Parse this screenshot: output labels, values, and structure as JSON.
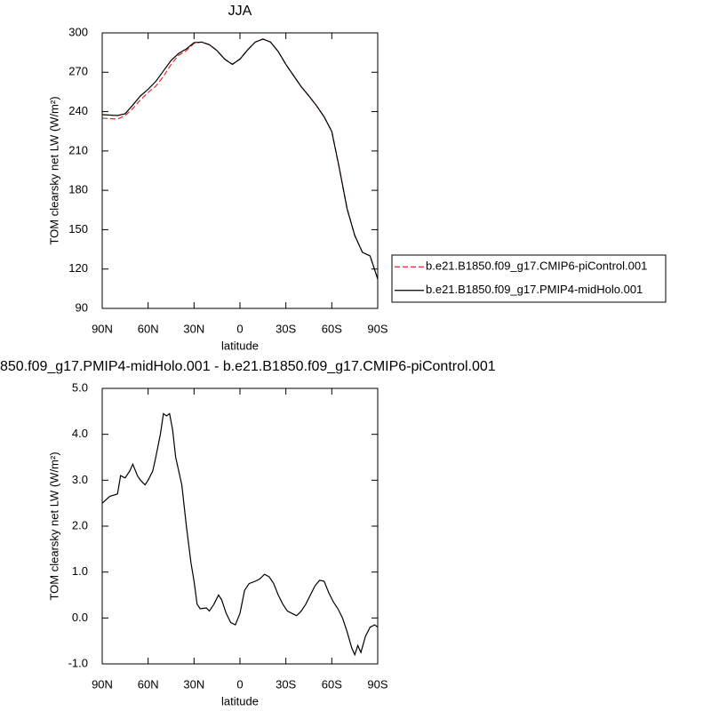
{
  "chart_data": [
    {
      "type": "line",
      "title": "JJA",
      "xlabel": "latitude",
      "ylabel": "TOM clearsky net LW (W/m²)",
      "x": [
        90,
        80,
        75,
        70,
        65,
        60,
        55,
        50,
        45,
        40,
        35,
        30,
        25,
        20,
        15,
        10,
        5,
        0,
        -5,
        -10,
        -15,
        -20,
        -25,
        -30,
        -35,
        -40,
        -45,
        -50,
        -55,
        -60,
        -65,
        -70,
        -75,
        -80,
        -85,
        -90
      ],
      "series": [
        {
          "name": "b.e21.B1850.f09_g17.CMIP6-piControl.001",
          "color": "#e8262a",
          "line_style": "dashed",
          "values": [
            235,
            234.3,
            237,
            242.4,
            249,
            254.6,
            259.4,
            266.8,
            276,
            283,
            286.5,
            292,
            293,
            291,
            286.5,
            280,
            276,
            280,
            287,
            293,
            295.3,
            293,
            285.8,
            276,
            267.5,
            259,
            252,
            244.5,
            236,
            224.8,
            196.4,
            165.9,
            145.6,
            132.7,
            130,
            112.4
          ]
        },
        {
          "name": "b.e21.B1850.f09_g17.PMIP4-midHolo.001",
          "color": "#000000",
          "line_style": "solid",
          "values": [
            237.7,
            237,
            238.4,
            245,
            252,
            257,
            263,
            271,
            279,
            284.4,
            287.8,
            292.6,
            293,
            291,
            286.5,
            280,
            276,
            280,
            287,
            293,
            295.3,
            293,
            285.8,
            276,
            267.5,
            259,
            252,
            244.5,
            236,
            224.8,
            196.4,
            165.9,
            145.6,
            132.7,
            130,
            112.4
          ]
        }
      ],
      "xlim": [
        90,
        -90
      ],
      "xticks": [
        {
          "value": 90,
          "label": "90N"
        },
        {
          "value": 60,
          "label": "60N"
        },
        {
          "value": 30,
          "label": "30N"
        },
        0,
        {
          "value": -30,
          "label": "30S"
        },
        {
          "value": -60,
          "label": "60S"
        },
        {
          "value": -90,
          "label": "90S"
        }
      ],
      "ylim": [
        90,
        300
      ],
      "yticks": [
        90,
        120,
        150,
        180,
        210,
        240,
        270,
        300
      ],
      "legend": "right"
    },
    {
      "type": "line",
      "title": "850.f09_g17.PMIP4-midHolo.001 - b.e21.B1850.f09_g17.CMIP6-piControl.001",
      "xlabel": "latitude",
      "ylabel": "TOM clearsky net LW (W/m²)",
      "x": [
        90,
        85,
        80,
        78,
        75,
        72,
        70,
        67,
        65,
        62,
        60,
        57,
        55,
        52,
        50,
        48,
        46,
        44,
        42,
        38,
        35,
        32,
        30,
        28,
        26,
        22,
        20,
        17,
        14,
        12,
        9,
        6,
        3,
        0,
        -3,
        -6,
        -10,
        -13,
        -16,
        -19,
        -22,
        -25,
        -28,
        -31,
        -34,
        -37,
        -40,
        -43,
        -46,
        -49,
        -52,
        -55,
        -58,
        -61,
        -64,
        -67,
        -70,
        -73,
        -75,
        -77,
        -79,
        -82,
        -85,
        -88,
        -90
      ],
      "series": [
        {
          "color": "#000000",
          "line_style": "solid",
          "values": [
            2.5,
            2.65,
            2.7,
            3.1,
            3.05,
            3.2,
            3.35,
            3.1,
            3.0,
            2.9,
            3.0,
            3.2,
            3.5,
            4.0,
            4.45,
            4.4,
            4.45,
            4.1,
            3.5,
            2.9,
            2.0,
            1.2,
            0.8,
            0.3,
            0.2,
            0.22,
            0.15,
            0.3,
            0.5,
            0.4,
            0.1,
            -0.1,
            -0.15,
            0.1,
            0.6,
            0.75,
            0.8,
            0.85,
            0.95,
            0.9,
            0.75,
            0.5,
            0.3,
            0.15,
            0.1,
            0.05,
            0.15,
            0.3,
            0.5,
            0.7,
            0.82,
            0.8,
            0.55,
            0.35,
            0.2,
            0.0,
            -0.3,
            -0.65,
            -0.8,
            -0.6,
            -0.75,
            -0.4,
            -0.2,
            -0.15,
            -0.2
          ]
        }
      ],
      "xlim": [
        90,
        -90
      ],
      "xticks": [
        {
          "value": 90,
          "label": "90N"
        },
        {
          "value": 60,
          "label": "60N"
        },
        {
          "value": 30,
          "label": "30N"
        },
        0,
        {
          "value": -30,
          "label": "30S"
        },
        {
          "value": -60,
          "label": "60S"
        },
        {
          "value": -90,
          "label": "90S"
        }
      ],
      "ylim": [
        -1,
        5
      ],
      "yticks": [
        {
          "value": -1,
          "label": "-1.0"
        },
        {
          "value": 0,
          "label": "0.0"
        },
        {
          "value": 1,
          "label": "1.0"
        },
        {
          "value": 2,
          "label": "2.0"
        },
        {
          "value": 3,
          "label": "3.0"
        },
        {
          "value": 4,
          "label": "4.0"
        },
        {
          "value": 5,
          "label": "5.0"
        }
      ]
    }
  ]
}
